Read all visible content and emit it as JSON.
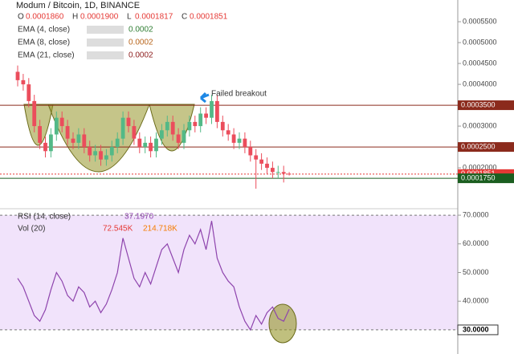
{
  "chart_data": [
    {
      "type": "candlestick",
      "title": "Modum / Bitcoin, 1D, BINANCE",
      "ohlc_legend": [
        {
          "key": "O",
          "value": {
            "value": 0.000186,
            "label": "0.0001860"
          }
        },
        {
          "key": "H",
          "value": {
            "value": 0.00019,
            "label": "0.0001900"
          }
        },
        {
          "key": "L",
          "value": {
            "value": 0.0001817,
            "label": "0.0001817"
          }
        },
        {
          "key": "C",
          "value": {
            "value": 0.0001851,
            "label": "0.0001851"
          }
        }
      ],
      "indicators": [
        {
          "name": "EMA (4, close)",
          "value": 0.0002,
          "color": "#2e7d32"
        },
        {
          "name": "EMA (8, close)",
          "value": 0.0002,
          "color": "#b8651b"
        },
        {
          "name": "EMA (21, close)",
          "value": 0.0002,
          "color": "#8b1a1a"
        }
      ],
      "annotation": "Failed breakout",
      "categories": [
        null,
        null,
        null,
        null,
        null,
        null,
        null,
        null,
        null,
        null,
        null,
        null,
        null,
        null,
        null,
        null,
        null,
        null,
        null,
        null,
        null,
        null,
        null,
        null,
        null,
        null,
        null,
        null,
        null,
        null,
        null,
        null,
        null,
        null,
        null,
        null,
        null,
        null,
        null,
        null,
        null,
        null,
        null,
        null,
        null,
        null,
        null,
        null,
        null,
        null
      ],
      "open": [
        0.00043,
        0.00041,
        0.0004,
        0.00036,
        0.0003,
        0.00026,
        0.00024,
        0.00028,
        0.00032,
        0.0003,
        0.00027,
        0.00026,
        0.00028,
        0.00025,
        0.00023,
        0.00024,
        0.00022,
        0.00023,
        0.00025,
        0.00027,
        0.00032,
        0.0003,
        0.00027,
        0.00025,
        0.00026,
        0.00024,
        0.00027,
        0.00029,
        0.00031,
        0.00028,
        0.00026,
        0.00029,
        0.00031,
        0.0003,
        0.00033,
        0.00032,
        0.00036,
        0.00031,
        0.00029,
        0.00028,
        0.00026,
        0.00027,
        0.00025,
        0.00023,
        0.00022,
        0.00021,
        0.0002,
        0.00019,
        0.00019,
        0.000186
      ],
      "high": [
        0.000445,
        0.000425,
        0.000415,
        0.000375,
        0.000315,
        0.000275,
        0.000295,
        0.000335,
        0.000335,
        0.000315,
        0.000285,
        0.000295,
        0.000295,
        0.000265,
        0.000255,
        0.000255,
        0.000245,
        0.000265,
        0.000285,
        0.000335,
        0.000335,
        0.000315,
        0.000285,
        0.000275,
        0.000275,
        0.000285,
        0.000305,
        0.000325,
        0.000325,
        0.000295,
        0.000305,
        0.000325,
        0.000325,
        0.000345,
        0.000345,
        0.000375,
        0.000375,
        0.000325,
        0.000305,
        0.000295,
        0.000285,
        0.000285,
        0.000265,
        0.000245,
        0.000235,
        0.000225,
        0.000215,
        0.000205,
        0.000205,
        0.00019
      ],
      "low": [
        0.000395,
        0.000385,
        0.000345,
        0.000285,
        0.000245,
        0.000225,
        0.000225,
        0.000265,
        0.000285,
        0.000255,
        0.000245,
        0.000245,
        0.000235,
        0.000215,
        0.000215,
        0.000205,
        0.000205,
        0.000215,
        0.000235,
        0.000255,
        0.000285,
        0.000255,
        0.000235,
        0.000235,
        0.000225,
        0.000225,
        0.000255,
        0.000275,
        0.000265,
        0.000245,
        0.000245,
        0.000275,
        0.000285,
        0.000285,
        0.000305,
        0.000305,
        0.000295,
        0.000275,
        0.000265,
        0.000245,
        0.000245,
        0.000235,
        0.000215,
        0.00015,
        0.000195,
        0.000185,
        0.000175,
        0.000175,
        0.000165,
        0.0001817
      ],
      "close": [
        0.00041,
        0.0004,
        0.00036,
        0.0003,
        0.00026,
        0.00024,
        0.00028,
        0.00032,
        0.0003,
        0.00027,
        0.00026,
        0.00028,
        0.00025,
        0.00023,
        0.00024,
        0.00022,
        0.00023,
        0.00025,
        0.00027,
        0.00032,
        0.0003,
        0.00027,
        0.00025,
        0.00026,
        0.00024,
        0.00027,
        0.00029,
        0.00031,
        0.00028,
        0.00026,
        0.00029,
        0.00031,
        0.0003,
        0.00033,
        0.00032,
        0.00036,
        0.00031,
        0.00029,
        0.00028,
        0.00026,
        0.00027,
        0.00025,
        0.00023,
        0.00022,
        0.00021,
        0.0002,
        0.00019,
        0.00019,
        0.000186,
        0.0001851
      ],
      "up_color": "#53b987",
      "down_color": "#eb4d5c",
      "ylim": [
        0.000106,
        0.000602
      ],
      "yticks": [
        {
          "value": 0.00055,
          "label": "0.0005500"
        },
        {
          "value": 0.0005,
          "label": "0.0005000"
        },
        {
          "value": 0.00045,
          "label": "0.0004500"
        },
        {
          "value": 0.0004,
          "label": "0.0004000"
        },
        {
          "value": 0.0003,
          "label": "0.0003000"
        },
        {
          "value": 0.0002,
          "label": "0.0002000"
        }
      ],
      "levels": [
        {
          "value": 0.00035,
          "label": "0.0003500",
          "color": "#8b2a1c"
        },
        {
          "value": 0.00025,
          "label": "0.0002500",
          "color": "#8b2a1c"
        },
        {
          "value": 0.0001851,
          "label": "0.0001851",
          "color": "#e53935"
        },
        {
          "value": 0.000175,
          "label": "0.0001750",
          "color": "#1b5e20"
        }
      ]
    },
    {
      "type": "line",
      "legend": "RSI (14, close)",
      "legend_value": {
        "value": 37.197,
        "label": "37.1970"
      },
      "volume_legend": "Vol (20)",
      "volume_values": [
        {
          "value": 72545,
          "label": "72.545K",
          "color": "#e53935"
        },
        {
          "value": 214718,
          "label": "214.718K",
          "color": "#f57c00"
        }
      ],
      "values": [
        48,
        45,
        40,
        35,
        33,
        37,
        44,
        50,
        47,
        42,
        40,
        45,
        43,
        38,
        40,
        36,
        39,
        44,
        50,
        62,
        55,
        48,
        45,
        50,
        46,
        52,
        58,
        60,
        55,
        50,
        58,
        63,
        60,
        65,
        58,
        68,
        55,
        50,
        47,
        45,
        38,
        33,
        30,
        35,
        32,
        36,
        38,
        34,
        33,
        37.197
      ],
      "color": "#8e44ad",
      "band": [
        30,
        70
      ],
      "band_color": "#f1e3fb",
      "ylim": [
        22.7,
        71.7
      ],
      "yticks": [
        {
          "value": 70,
          "label": "70.0000"
        },
        {
          "value": 60,
          "label": "60.0000"
        },
        {
          "value": 50,
          "label": "50.0000"
        },
        {
          "value": 40,
          "label": "40.0000"
        },
        {
          "value": 30,
          "label": "30.0000"
        }
      ],
      "highlight_tick": 4
    }
  ]
}
